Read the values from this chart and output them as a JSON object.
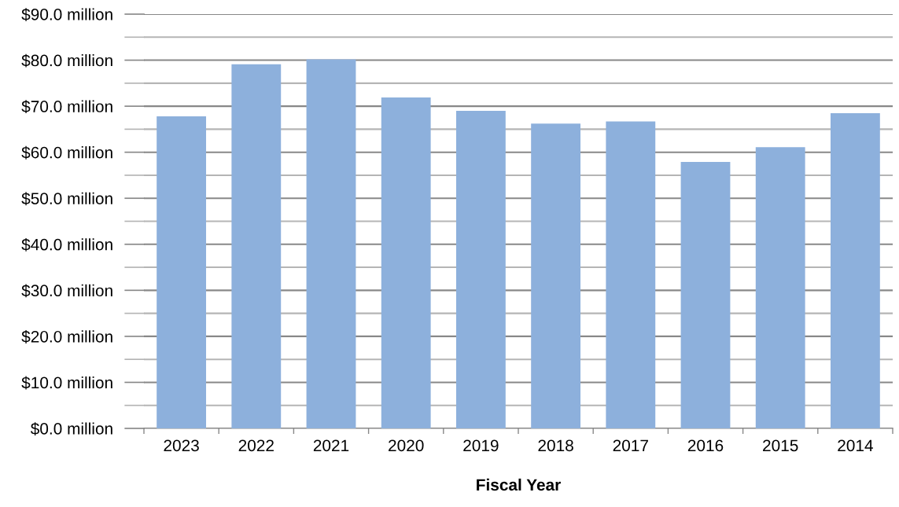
{
  "chart_data": {
    "type": "bar",
    "xlabel": "Fiscal Year",
    "categories": [
      "2023",
      "2022",
      "2021",
      "2020",
      "2019",
      "2018",
      "2017",
      "2016",
      "2015",
      "2014"
    ],
    "values": [
      67.8,
      79.1,
      80.2,
      71.9,
      69.0,
      66.2,
      66.7,
      57.9,
      61.1,
      68.5
    ],
    "color": "#8db0dc",
    "ylim": [
      0,
      90
    ],
    "yticks": [
      {
        "value": 0,
        "label": "$0.0 million"
      },
      {
        "value": 5,
        "label": null
      },
      {
        "value": 10,
        "label": "$10.0 million"
      },
      {
        "value": 15,
        "label": null
      },
      {
        "value": 20,
        "label": "$20.0 million"
      },
      {
        "value": 25,
        "label": null
      },
      {
        "value": 30,
        "label": "$30.0 million"
      },
      {
        "value": 35,
        "label": null
      },
      {
        "value": 40,
        "label": "$40.0 million"
      },
      {
        "value": 45,
        "label": null
      },
      {
        "value": 50,
        "label": "$50.0 million"
      },
      {
        "value": 55,
        "label": null
      },
      {
        "value": 60,
        "label": "$60.0 million"
      },
      {
        "value": 65,
        "label": null
      },
      {
        "value": 70,
        "label": "$70.0 million"
      },
      {
        "value": 75,
        "label": null
      },
      {
        "value": 80,
        "label": "$80.0 million"
      },
      {
        "value": 85,
        "label": null
      },
      {
        "value": 90,
        "label": "$90.0 million"
      }
    ],
    "grid": "y"
  }
}
